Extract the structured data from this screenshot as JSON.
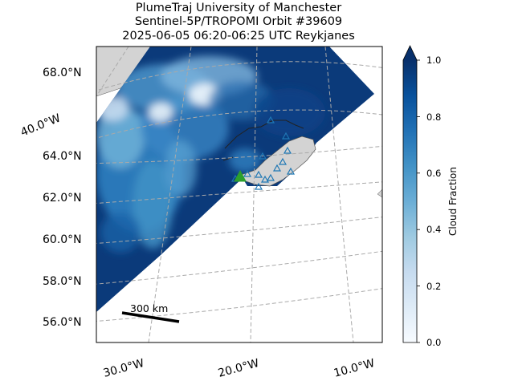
{
  "title": {
    "line1": "PlumeTraj    University of Manchester",
    "line2": "Sentinel-5P/TROPOMI Orbit #39609",
    "line3": "2025-06-05   06:20-06:25 UTC   Reykjanes"
  },
  "map": {
    "lat_labels": [
      "68.0°N",
      "64.0°N",
      "62.0°N",
      "60.0°N",
      "58.0°N",
      "56.0°N"
    ],
    "lon_labels": [
      "30.0°W",
      "20.0°W",
      "10.0°W"
    ],
    "side_label": "40.0°W",
    "scale_bar": "300 km",
    "land_color": "#d3d3d3",
    "volcano_color": "#2ca02c",
    "station_color": "#1f77b4"
  },
  "colorbar": {
    "label": "Cloud Fraction",
    "ticks": [
      "0.0",
      "0.2",
      "0.4",
      "0.6",
      "0.8",
      "1.0"
    ],
    "range": [
      0.0,
      1.0
    ],
    "colormap": "Blues",
    "extend": "max"
  }
}
